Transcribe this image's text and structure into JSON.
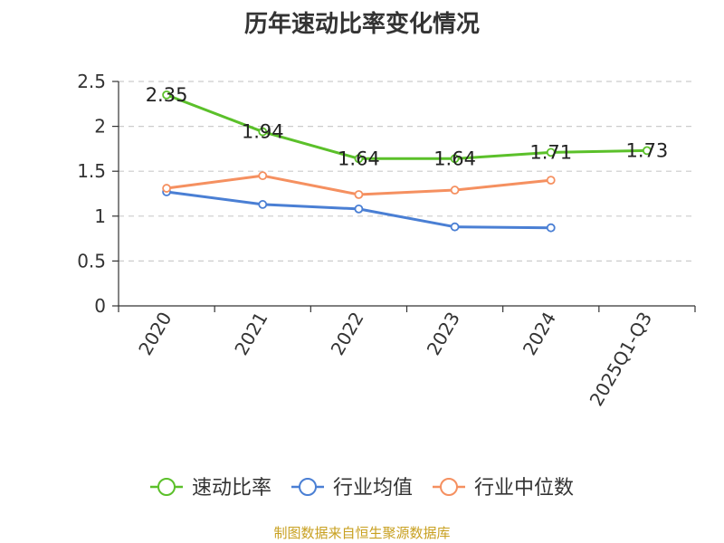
{
  "title": "历年速动比率变化情况",
  "source_note": "制图数据来自恒生聚源数据库",
  "chart_data": {
    "type": "line",
    "title": "历年速动比率变化情况",
    "xlabel": "",
    "ylabel": "",
    "categories": [
      "2020",
      "2021",
      "2022",
      "2023",
      "2024",
      "2025Q1-Q3"
    ],
    "yticks": [
      "0",
      "0.5",
      "1",
      "1.5",
      "2",
      "2.5"
    ],
    "ylim": [
      0,
      2.5
    ],
    "grid": true,
    "legend_position": "bottom",
    "series": [
      {
        "name": "速动比率",
        "color": "#5bc02a",
        "values": [
          2.35,
          1.94,
          1.64,
          1.64,
          1.71,
          1.73
        ],
        "data_labels": [
          "2.35",
          "1.94",
          "1.64",
          "1.64",
          "1.71",
          "1.73"
        ]
      },
      {
        "name": "行业均值",
        "color": "#4a7fd4",
        "values": [
          1.27,
          1.13,
          1.08,
          0.88,
          0.87,
          null
        ]
      },
      {
        "name": "行业中位数",
        "color": "#f59060",
        "values": [
          1.31,
          1.45,
          1.24,
          1.29,
          1.4,
          null
        ]
      }
    ]
  }
}
